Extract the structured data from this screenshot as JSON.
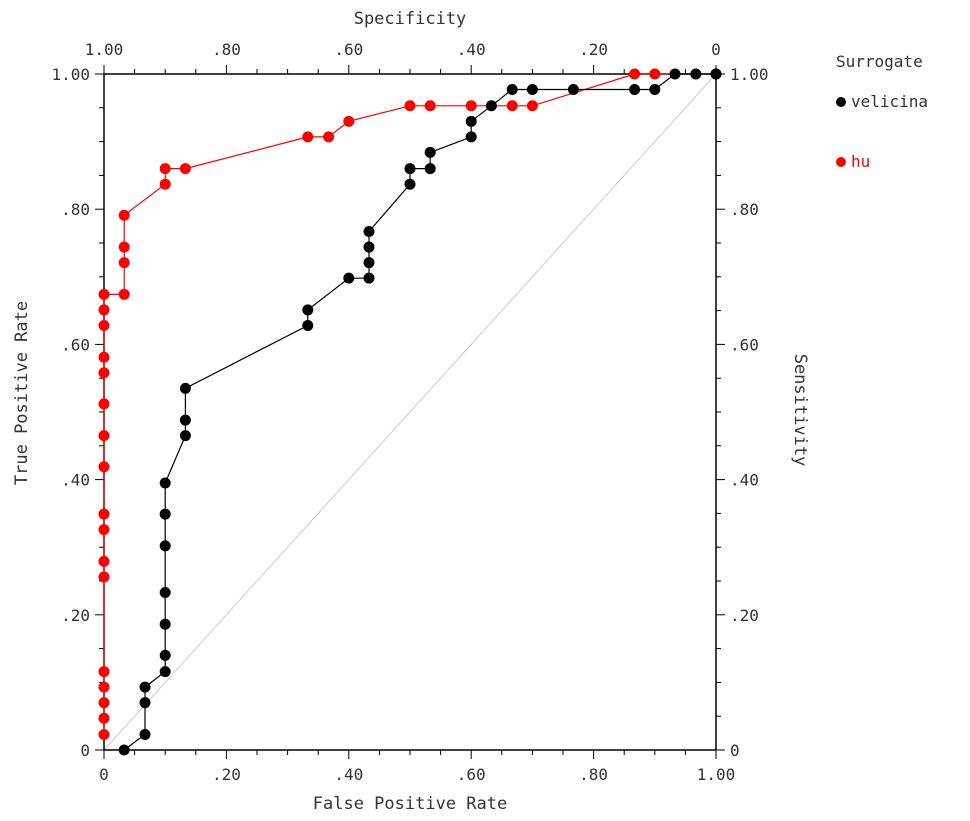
{
  "chart_data": {
    "type": "line",
    "title": "",
    "xlabel": "False Positive Rate",
    "ylabel": "True Positive Rate",
    "x2label": "Specificity",
    "y2label": "Sensitivity",
    "xlim": [
      0,
      1
    ],
    "ylim": [
      0,
      1
    ],
    "x_ticks": [
      0,
      0.2,
      0.4,
      0.6,
      0.8,
      1.0
    ],
    "x_tick_labels": [
      "0",
      ".20",
      ".40",
      ".60",
      ".80",
      "1.00"
    ],
    "y_ticks": [
      0,
      0.2,
      0.4,
      0.6,
      0.8,
      1.0
    ],
    "y_tick_labels": [
      "0",
      ".20",
      ".40",
      ".60",
      ".80",
      "1.00"
    ],
    "x2_tick_labels": [
      "1.00",
      ".80",
      ".60",
      ".40",
      ".20",
      "0"
    ],
    "y2_tick_labels": [
      "0",
      ".20",
      ".40",
      ".60",
      ".80",
      "1.00"
    ],
    "grid": false,
    "diagonal_reference": true,
    "legend": {
      "title": "Surrogate",
      "position": "right"
    },
    "series": [
      {
        "name": "velicina",
        "color": "#000000",
        "points": [
          [
            0.033,
            0.0
          ],
          [
            0.067,
            0.023
          ],
          [
            0.067,
            0.07
          ],
          [
            0.067,
            0.093
          ],
          [
            0.1,
            0.116
          ],
          [
            0.1,
            0.14
          ],
          [
            0.1,
            0.186
          ],
          [
            0.1,
            0.233
          ],
          [
            0.1,
            0.302
          ],
          [
            0.1,
            0.349
          ],
          [
            0.1,
            0.395
          ],
          [
            0.133,
            0.465
          ],
          [
            0.133,
            0.488
          ],
          [
            0.133,
            0.535
          ],
          [
            0.333,
            0.628
          ],
          [
            0.333,
            0.651
          ],
          [
            0.4,
            0.698
          ],
          [
            0.433,
            0.698
          ],
          [
            0.433,
            0.721
          ],
          [
            0.433,
            0.744
          ],
          [
            0.433,
            0.767
          ],
          [
            0.5,
            0.837
          ],
          [
            0.5,
            0.86
          ],
          [
            0.533,
            0.86
          ],
          [
            0.533,
            0.884
          ],
          [
            0.6,
            0.907
          ],
          [
            0.6,
            0.93
          ],
          [
            0.633,
            0.953
          ],
          [
            0.667,
            0.977
          ],
          [
            0.7,
            0.977
          ],
          [
            0.767,
            0.977
          ],
          [
            0.867,
            0.977
          ],
          [
            0.9,
            0.977
          ],
          [
            0.933,
            1.0
          ],
          [
            0.967,
            1.0
          ],
          [
            1.0,
            1.0
          ]
        ]
      },
      {
        "name": "hu",
        "color": "#ff0000",
        "points": [
          [
            0.0,
            0.023
          ],
          [
            0.0,
            0.047
          ],
          [
            0.0,
            0.07
          ],
          [
            0.0,
            0.093
          ],
          [
            0.0,
            0.116
          ],
          [
            0.0,
            0.256
          ],
          [
            0.0,
            0.279
          ],
          [
            0.0,
            0.326
          ],
          [
            0.0,
            0.349
          ],
          [
            0.0,
            0.419
          ],
          [
            0.0,
            0.465
          ],
          [
            0.0,
            0.512
          ],
          [
            0.0,
            0.558
          ],
          [
            0.0,
            0.581
          ],
          [
            0.0,
            0.628
          ],
          [
            0.0,
            0.651
          ],
          [
            0.0,
            0.674
          ],
          [
            0.033,
            0.674
          ],
          [
            0.033,
            0.721
          ],
          [
            0.033,
            0.744
          ],
          [
            0.033,
            0.791
          ],
          [
            0.1,
            0.837
          ],
          [
            0.1,
            0.86
          ],
          [
            0.133,
            0.86
          ],
          [
            0.333,
            0.907
          ],
          [
            0.367,
            0.907
          ],
          [
            0.4,
            0.93
          ],
          [
            0.5,
            0.953
          ],
          [
            0.533,
            0.953
          ],
          [
            0.6,
            0.953
          ],
          [
            0.667,
            0.953
          ],
          [
            0.7,
            0.953
          ],
          [
            0.867,
            1.0
          ],
          [
            0.9,
            1.0
          ],
          [
            1.0,
            1.0
          ]
        ]
      }
    ]
  }
}
